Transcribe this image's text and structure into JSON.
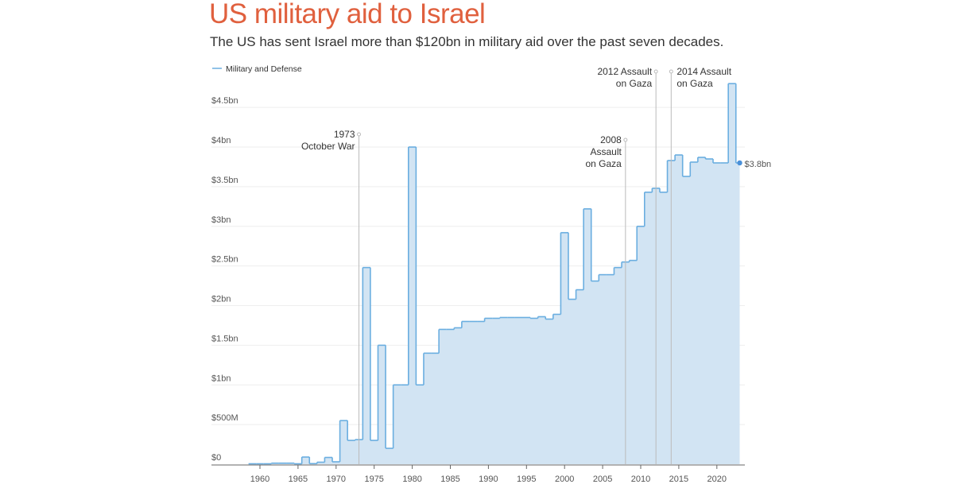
{
  "header": {
    "title": "US military aid to Israel",
    "subtitle": "The US has sent Israel more than $120bn in military aid over the past seven decades."
  },
  "colors": {
    "title": "#e0603e",
    "line": "#6aaee0",
    "fill": "#d2e4f3",
    "grid": "#eeeeee",
    "annotation": "#bbbbbb"
  },
  "chart_data": {
    "type": "area",
    "step": "center",
    "title": "US military aid to Israel",
    "subtitle": "The US has sent Israel more than $120bn in military aid over the past seven decades.",
    "xlabel": "",
    "ylabel": "",
    "legend": {
      "position": "top-left",
      "entries": [
        "Military and Defense"
      ]
    },
    "grid": true,
    "xlim": [
      1953.5,
      2024
    ],
    "ylim": [
      0,
      4.8
    ],
    "x_ticks": [
      1960,
      1965,
      1970,
      1975,
      1980,
      1985,
      1990,
      1995,
      2000,
      2005,
      2010,
      2015,
      2020
    ],
    "y_ticks": [
      {
        "value": 0,
        "label": "$0"
      },
      {
        "value": 0.5,
        "label": "$500M"
      },
      {
        "value": 1,
        "label": "$1bn"
      },
      {
        "value": 1.5,
        "label": "$1.5bn"
      },
      {
        "value": 2,
        "label": "$2bn"
      },
      {
        "value": 2.5,
        "label": "$2.5bn"
      },
      {
        "value": 3,
        "label": "$3bn"
      },
      {
        "value": 3.5,
        "label": "$3.5bn"
      },
      {
        "value": 4,
        "label": "$4bn"
      },
      {
        "value": 4.5,
        "label": "$4.5bn"
      }
    ],
    "series": [
      {
        "name": "Military and Defense",
        "unit": "USD billions",
        "x": [
          1959,
          1960,
          1961,
          1962,
          1963,
          1964,
          1965,
          1966,
          1967,
          1968,
          1969,
          1970,
          1971,
          1972,
          1973,
          1974,
          1975,
          1976,
          1977,
          1978,
          1979,
          1980,
          1981,
          1982,
          1983,
          1984,
          1985,
          1986,
          1987,
          1988,
          1989,
          1990,
          1991,
          1992,
          1993,
          1994,
          1995,
          1996,
          1997,
          1998,
          1999,
          2000,
          2001,
          2002,
          2003,
          2004,
          2005,
          2006,
          2007,
          2008,
          2009,
          2010,
          2011,
          2012,
          2013,
          2014,
          2015,
          2016,
          2017,
          2018,
          2019,
          2020,
          2021,
          2022,
          2023
        ],
        "values": [
          0.005,
          0.005,
          0.005,
          0.013,
          0.013,
          0.013,
          0.005,
          0.09,
          0.007,
          0.025,
          0.085,
          0.03,
          0.55,
          0.3,
          0.31,
          2.48,
          0.3,
          1.5,
          0.2,
          1.0,
          1.0,
          4.0,
          1.0,
          1.4,
          1.4,
          1.7,
          1.7,
          1.72,
          1.8,
          1.8,
          1.8,
          1.84,
          1.84,
          1.85,
          1.85,
          1.85,
          1.85,
          1.84,
          1.86,
          1.83,
          1.89,
          2.92,
          2.08,
          2.2,
          3.22,
          2.31,
          2.39,
          2.39,
          2.48,
          2.55,
          2.57,
          3.0,
          3.43,
          3.48,
          3.43,
          3.83,
          3.9,
          3.63,
          3.81,
          3.87,
          3.85,
          3.8,
          3.8,
          4.8,
          3.8
        ]
      }
    ],
    "end_label": {
      "year": 2023,
      "value": 3.8,
      "text": "$3.8bn"
    },
    "annotations": [
      {
        "year": 1973,
        "lines": [
          "1973",
          "October War"
        ],
        "align": "end"
      },
      {
        "year": 2008,
        "lines": [
          "2008",
          "Assault",
          "on Gaza"
        ],
        "align": "end"
      },
      {
        "year": 2012,
        "lines": [
          "2012 Assault",
          "on Gaza"
        ],
        "align": "end"
      },
      {
        "year": 2014,
        "lines": [
          "2014 Assault",
          "on Gaza"
        ],
        "align": "start"
      }
    ]
  }
}
